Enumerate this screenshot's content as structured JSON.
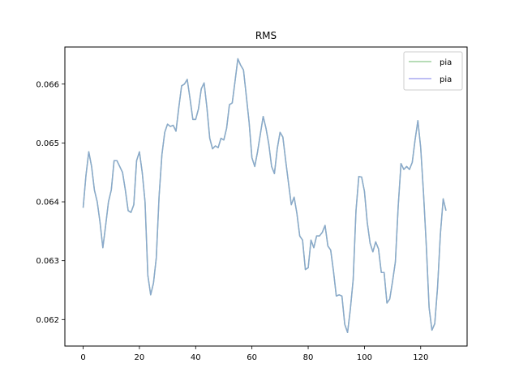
{
  "chart_data": {
    "type": "line",
    "title": "RMS",
    "xlabel": "",
    "ylabel": "",
    "xlim": [
      -6.5,
      136.5
    ],
    "ylim": [
      0.06155,
      0.06663
    ],
    "x_ticks": [
      0,
      20,
      40,
      60,
      80,
      100,
      120
    ],
    "x_tick_labels": [
      "0",
      "20",
      "40",
      "60",
      "80",
      "100",
      "120"
    ],
    "y_ticks": [
      0.062,
      0.063,
      0.064,
      0.065,
      0.066
    ],
    "y_tick_labels": [
      "0.062",
      "0.063",
      "0.064",
      "0.065",
      "0.066"
    ],
    "grid": false,
    "legend_position": "top-right",
    "series": [
      {
        "name": "pia",
        "color": "#9fd09f",
        "values": [
          0.0639,
          0.06445,
          0.06485,
          0.0646,
          0.0642,
          0.064,
          0.06365,
          0.06322,
          0.0636,
          0.064,
          0.0642,
          0.0647,
          0.0647,
          0.0646,
          0.0645,
          0.0642,
          0.06385,
          0.06382,
          0.06395,
          0.0647,
          0.06485,
          0.0645,
          0.064,
          0.06275,
          0.06242,
          0.06262,
          0.06305,
          0.0641,
          0.0648,
          0.06518,
          0.06532,
          0.06528,
          0.0653,
          0.0652,
          0.0656,
          0.06597,
          0.066,
          0.06608,
          0.06575,
          0.0654,
          0.0654,
          0.06558,
          0.06592,
          0.06602,
          0.0656,
          0.06508,
          0.0649,
          0.06495,
          0.06492,
          0.06508,
          0.06505,
          0.06525,
          0.06565,
          0.06568,
          0.06605,
          0.06643,
          0.06632,
          0.06624,
          0.0658,
          0.06535,
          0.06475,
          0.0646,
          0.06485,
          0.06515,
          0.06545,
          0.06525,
          0.06498,
          0.0646,
          0.06448,
          0.0649,
          0.06518,
          0.0651,
          0.0647,
          0.06432,
          0.06395,
          0.06408,
          0.0638,
          0.06342,
          0.06335,
          0.06285,
          0.06288,
          0.06335,
          0.06322,
          0.06342,
          0.06342,
          0.06348,
          0.0636,
          0.06325,
          0.06318,
          0.06282,
          0.0624,
          0.06242,
          0.0624,
          0.06192,
          0.06178,
          0.06218,
          0.06268,
          0.06385,
          0.06443,
          0.06442,
          0.06418,
          0.06365,
          0.0633,
          0.06315,
          0.06332,
          0.0632,
          0.0628,
          0.0628,
          0.06228,
          0.06235,
          0.06265,
          0.06298,
          0.06392,
          0.06465,
          0.06455,
          0.0646,
          0.06455,
          0.06467,
          0.06505,
          0.06538,
          0.06492,
          0.06415,
          0.06325,
          0.0622,
          0.06182,
          0.06193,
          0.06255,
          0.06345,
          0.06405,
          0.06385
        ]
      },
      {
        "name": "pia",
        "color": "#a8a8f0",
        "values": [
          0.0639,
          0.06445,
          0.06485,
          0.0646,
          0.0642,
          0.064,
          0.06365,
          0.06322,
          0.0636,
          0.064,
          0.0642,
          0.0647,
          0.0647,
          0.0646,
          0.0645,
          0.0642,
          0.06385,
          0.06382,
          0.06395,
          0.0647,
          0.06485,
          0.0645,
          0.064,
          0.06275,
          0.06242,
          0.06262,
          0.06305,
          0.0641,
          0.0648,
          0.06518,
          0.06532,
          0.06528,
          0.0653,
          0.0652,
          0.0656,
          0.06597,
          0.066,
          0.06608,
          0.06575,
          0.0654,
          0.0654,
          0.06558,
          0.06592,
          0.06602,
          0.0656,
          0.06508,
          0.0649,
          0.06495,
          0.06492,
          0.06508,
          0.06505,
          0.06525,
          0.06565,
          0.06568,
          0.06605,
          0.06643,
          0.06632,
          0.06624,
          0.0658,
          0.06535,
          0.06475,
          0.0646,
          0.06485,
          0.06515,
          0.06545,
          0.06525,
          0.06498,
          0.0646,
          0.06448,
          0.0649,
          0.06518,
          0.0651,
          0.0647,
          0.06432,
          0.06395,
          0.06408,
          0.0638,
          0.06342,
          0.06335,
          0.06285,
          0.06288,
          0.06335,
          0.06322,
          0.06342,
          0.06342,
          0.06348,
          0.0636,
          0.06325,
          0.06318,
          0.06282,
          0.0624,
          0.06242,
          0.0624,
          0.06192,
          0.06178,
          0.06218,
          0.06268,
          0.06385,
          0.06443,
          0.06442,
          0.06418,
          0.06365,
          0.0633,
          0.06315,
          0.06332,
          0.0632,
          0.0628,
          0.0628,
          0.06228,
          0.06235,
          0.06265,
          0.06298,
          0.06392,
          0.06465,
          0.06455,
          0.0646,
          0.06455,
          0.06467,
          0.06505,
          0.06538,
          0.06492,
          0.06415,
          0.06325,
          0.0622,
          0.06182,
          0.06193,
          0.06255,
          0.06345,
          0.06405,
          0.06385
        ]
      }
    ],
    "visible_line_color": "#8aa8cc"
  }
}
